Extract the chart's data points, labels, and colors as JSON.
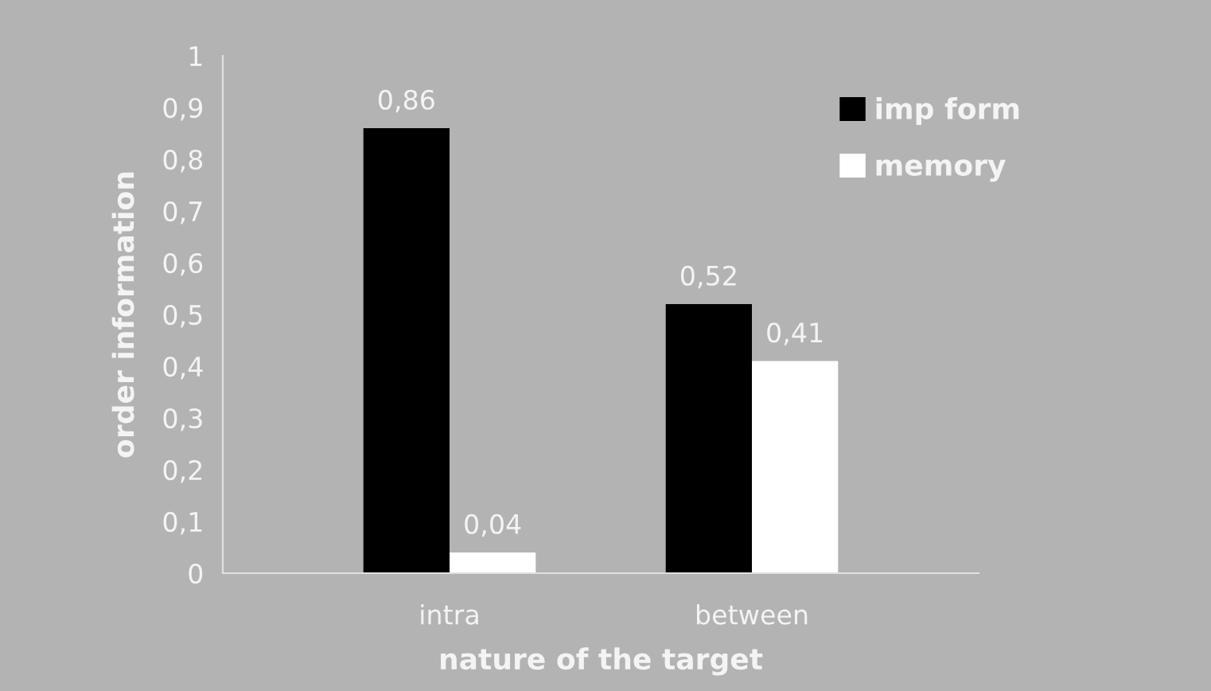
{
  "chart_data": {
    "type": "bar",
    "xlabel": "nature of the target",
    "ylabel": "order information",
    "categories": [
      "intra",
      "between"
    ],
    "series": [
      {
        "name": "imp form",
        "color": "#000000",
        "values": [
          0.86,
          0.52
        ],
        "value_labels": [
          "0,86",
          "0,52"
        ]
      },
      {
        "name": "memory",
        "color": "#ffffff",
        "values": [
          0.04,
          0.41
        ],
        "value_labels": [
          "0,04",
          "0,41"
        ]
      }
    ],
    "ylim": [
      0,
      1
    ],
    "yticks": [
      {
        "value": 0,
        "label": "0"
      },
      {
        "value": 0.1,
        "label": "0,1"
      },
      {
        "value": 0.2,
        "label": "0,2"
      },
      {
        "value": 0.3,
        "label": "0,3"
      },
      {
        "value": 0.4,
        "label": "0,4"
      },
      {
        "value": 0.5,
        "label": "0,5"
      },
      {
        "value": 0.6,
        "label": "0,6"
      },
      {
        "value": 0.7,
        "label": "0,7"
      },
      {
        "value": 0.8,
        "label": "0,8"
      },
      {
        "value": 0.9,
        "label": "0,9"
      },
      {
        "value": 1,
        "label": "1"
      }
    ],
    "grid": false,
    "legend": "top right"
  }
}
